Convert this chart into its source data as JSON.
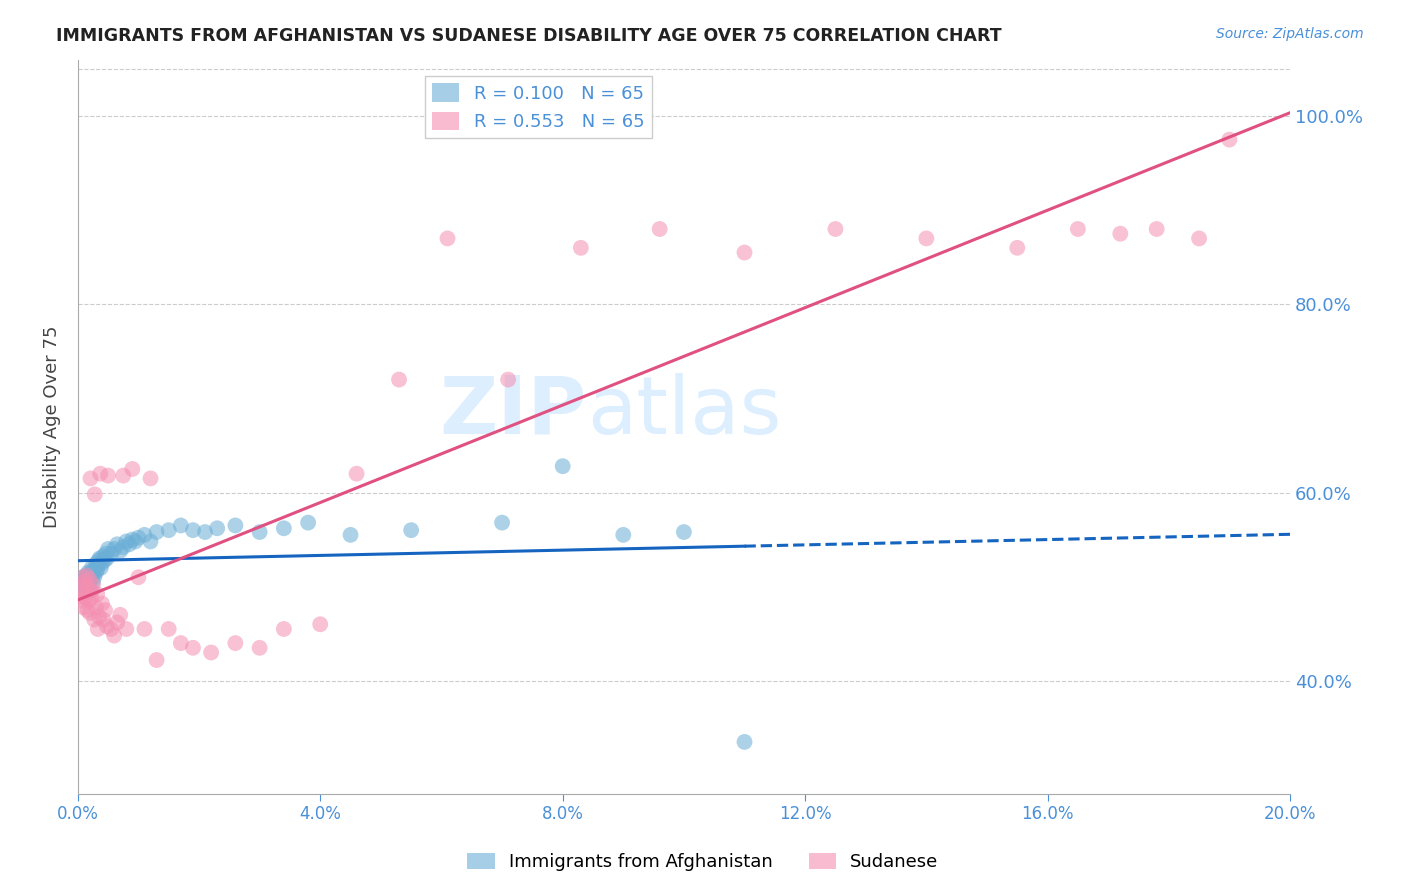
{
  "title": "IMMIGRANTS FROM AFGHANISTAN VS SUDANESE DISABILITY AGE OVER 75 CORRELATION CHART",
  "source": "Source: ZipAtlas.com",
  "ylabel": "Disability Age Over 75",
  "xlim": [
    0.0,
    0.2
  ],
  "ylim": [
    0.28,
    1.06
  ],
  "yticks": [
    0.4,
    0.6,
    0.8,
    1.0
  ],
  "ytick_labels": [
    "40.0%",
    "60.0%",
    "80.0%",
    "100.0%"
  ],
  "watermark": "ZIPatlas",
  "afghanistan_x": [
    0.0005,
    0.0007,
    0.0008,
    0.001,
    0.001,
    0.0012,
    0.0013,
    0.0014,
    0.0015,
    0.0015,
    0.0016,
    0.0017,
    0.0017,
    0.0018,
    0.0019,
    0.002,
    0.0021,
    0.0022,
    0.0023,
    0.0025,
    0.0026,
    0.0027,
    0.0028,
    0.003,
    0.0031,
    0.0032,
    0.0033,
    0.0035,
    0.0036,
    0.0038,
    0.004,
    0.0042,
    0.0044,
    0.0046,
    0.0048,
    0.005,
    0.0055,
    0.006,
    0.0065,
    0.007,
    0.0075,
    0.008,
    0.0085,
    0.009,
    0.0095,
    0.01,
    0.011,
    0.012,
    0.013,
    0.015,
    0.017,
    0.019,
    0.021,
    0.023,
    0.026,
    0.03,
    0.034,
    0.038,
    0.045,
    0.055,
    0.07,
    0.08,
    0.09,
    0.1,
    0.11
  ],
  "afghanistan_y": [
    0.5,
    0.505,
    0.51,
    0.498,
    0.502,
    0.508,
    0.495,
    0.512,
    0.5,
    0.505,
    0.498,
    0.51,
    0.515,
    0.502,
    0.508,
    0.495,
    0.51,
    0.515,
    0.52,
    0.505,
    0.515,
    0.51,
    0.52,
    0.515,
    0.525,
    0.518,
    0.522,
    0.528,
    0.53,
    0.52,
    0.525,
    0.532,
    0.528,
    0.535,
    0.53,
    0.54,
    0.535,
    0.54,
    0.545,
    0.538,
    0.542,
    0.548,
    0.545,
    0.55,
    0.548,
    0.552,
    0.555,
    0.548,
    0.558,
    0.56,
    0.565,
    0.56,
    0.558,
    0.562,
    0.565,
    0.558,
    0.562,
    0.568,
    0.555,
    0.56,
    0.568,
    0.628,
    0.555,
    0.558,
    0.335
  ],
  "sudanese_x": [
    0.0005,
    0.0006,
    0.0008,
    0.0009,
    0.001,
    0.0011,
    0.0012,
    0.0013,
    0.0014,
    0.0015,
    0.0016,
    0.0017,
    0.0018,
    0.0019,
    0.002,
    0.0021,
    0.0022,
    0.0023,
    0.0025,
    0.0027,
    0.0028,
    0.003,
    0.0032,
    0.0033,
    0.0035,
    0.0037,
    0.004,
    0.0042,
    0.0045,
    0.0048,
    0.005,
    0.0055,
    0.006,
    0.0065,
    0.007,
    0.0075,
    0.008,
    0.009,
    0.01,
    0.011,
    0.012,
    0.013,
    0.015,
    0.017,
    0.019,
    0.022,
    0.026,
    0.03,
    0.034,
    0.04,
    0.046,
    0.053,
    0.061,
    0.071,
    0.083,
    0.096,
    0.11,
    0.125,
    0.14,
    0.155,
    0.165,
    0.172,
    0.178,
    0.185,
    0.19
  ],
  "sudanese_y": [
    0.5,
    0.49,
    0.485,
    0.51,
    0.478,
    0.505,
    0.495,
    0.488,
    0.502,
    0.512,
    0.475,
    0.498,
    0.485,
    0.508,
    0.472,
    0.615,
    0.488,
    0.495,
    0.502,
    0.465,
    0.598,
    0.478,
    0.492,
    0.455,
    0.468,
    0.62,
    0.482,
    0.465,
    0.475,
    0.458,
    0.618,
    0.455,
    0.448,
    0.462,
    0.47,
    0.618,
    0.455,
    0.625,
    0.51,
    0.455,
    0.615,
    0.422,
    0.455,
    0.44,
    0.435,
    0.43,
    0.44,
    0.435,
    0.455,
    0.46,
    0.62,
    0.72,
    0.87,
    0.72,
    0.86,
    0.88,
    0.855,
    0.88,
    0.87,
    0.86,
    0.88,
    0.875,
    0.88,
    0.87,
    0.975
  ],
  "afghanistan_color": "#6baed6",
  "sudanese_color": "#f48fb1",
  "afghanistan_line_color": "#1565C0",
  "sudanese_line_color": "#e05080",
  "title_color": "#222222",
  "axis_label_color": "#4a90d9",
  "background_color": "#ffffff",
  "grid_color": "#cccccc",
  "watermark_color": "#ddeeff"
}
